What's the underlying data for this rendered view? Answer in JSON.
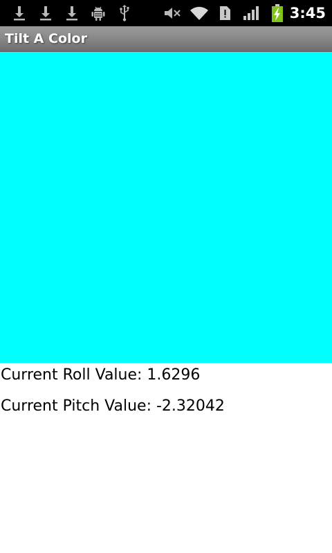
{
  "status_bar": {
    "time": "3:45",
    "icons": [
      "download-icon",
      "download-icon",
      "download-icon",
      "android-debug-icon",
      "usb-icon",
      "mute-icon",
      "wifi-icon",
      "sd-card-icon",
      "signal-icon",
      "battery-charging-icon"
    ],
    "battery_color": "#7fc31c"
  },
  "app": {
    "title": "Tilt A Color"
  },
  "color_panel": {
    "color": "#00ffff"
  },
  "readouts": {
    "roll": "Current Roll Value: 1.6296",
    "pitch": "Current Pitch Value: -2.32042"
  }
}
